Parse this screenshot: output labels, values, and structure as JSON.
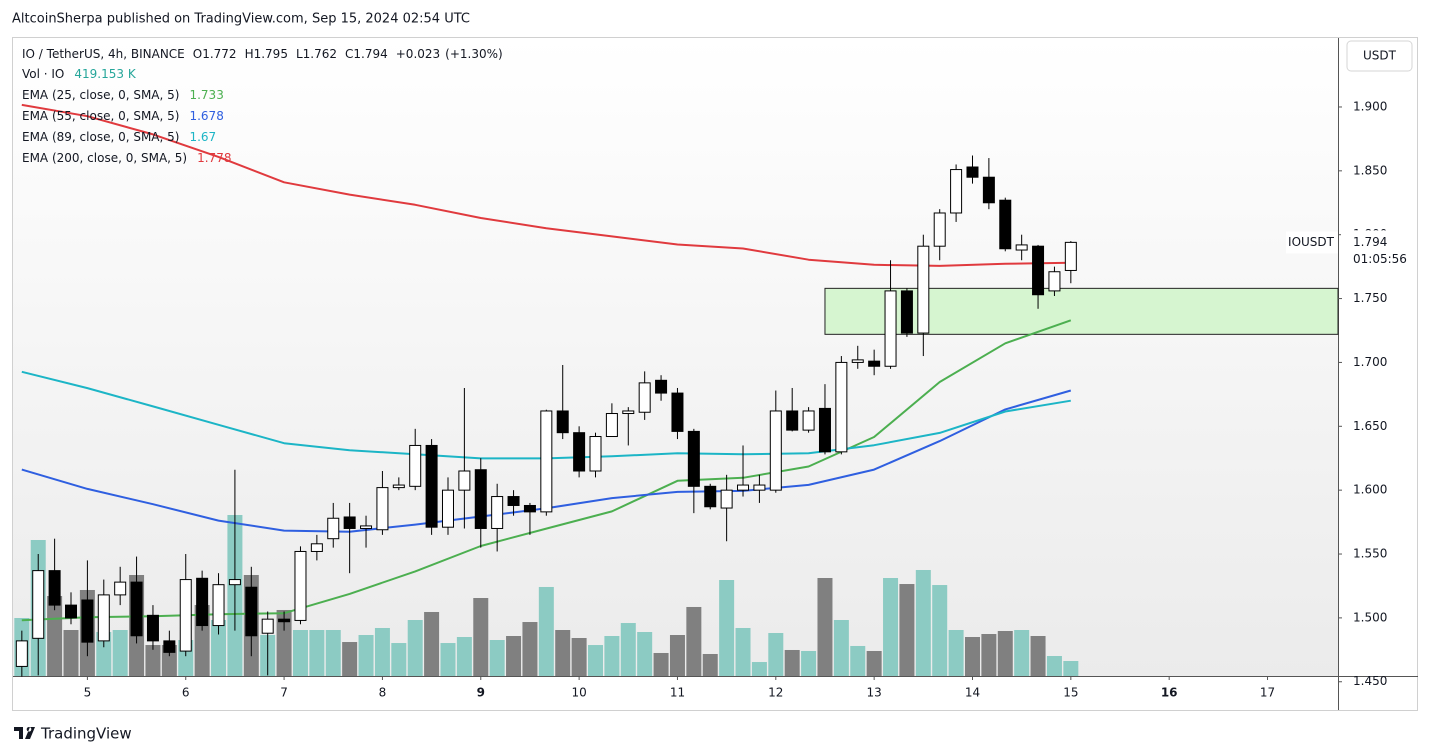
{
  "header": {
    "publisher": "AltcoinSherpa published on TradingView.com, Sep 15, 2024 02:54 UTC",
    "brand": "TradingView"
  },
  "chart_data": {
    "type": "candlestick",
    "symbol": "IO / TetherUS, 4h, BINANCE",
    "ohlc_labels": [
      "O",
      "H",
      "L",
      "C"
    ],
    "change": "+0.023",
    "change_percent": "(+1.30%)",
    "currency": "USDT",
    "ticker": "IOUSDT",
    "countdown": "01:05:56",
    "up_color": "#ffffff",
    "down_color": "#000000",
    "candles": {
      "open": [
        1.462,
        1.484,
        1.537,
        1.51,
        1.514,
        1.482,
        1.518,
        1.528,
        1.502,
        1.482,
        1.474,
        1.531,
        1.494,
        1.526,
        1.524,
        1.488,
        1.499,
        1.498,
        1.552,
        1.562,
        1.579,
        1.57,
        1.569,
        1.602,
        1.603,
        1.635,
        1.571,
        1.6,
        1.616,
        1.57,
        1.595,
        1.588,
        1.583,
        1.662,
        1.645,
        1.615,
        1.642,
        1.66,
        1.661,
        1.686,
        1.676,
        1.646,
        1.603,
        1.586,
        1.6,
        1.6,
        1.6,
        1.662,
        1.647,
        1.664,
        1.63,
        1.7,
        1.701,
        1.697,
        1.756,
        1.723,
        1.791,
        1.817,
        1.853,
        1.845,
        1.827,
        1.788,
        1.791,
        1.756,
        1.772
      ],
      "high": [
        1.49,
        1.55,
        1.562,
        1.52,
        1.545,
        1.53,
        1.54,
        1.548,
        1.51,
        1.49,
        1.55,
        1.537,
        1.535,
        1.616,
        1.54,
        1.505,
        1.505,
        1.556,
        1.565,
        1.59,
        1.59,
        1.58,
        1.615,
        1.61,
        1.648,
        1.64,
        1.61,
        1.68,
        1.625,
        1.605,
        1.6,
        1.59,
        1.663,
        1.698,
        1.65,
        1.645,
        1.668,
        1.665,
        1.693,
        1.69,
        1.68,
        1.648,
        1.605,
        1.612,
        1.635,
        1.612,
        1.678,
        1.68,
        1.665,
        1.683,
        1.705,
        1.713,
        1.71,
        1.78,
        1.758,
        1.8,
        1.82,
        1.855,
        1.862,
        1.86,
        1.829,
        1.8,
        1.792,
        1.775,
        1.795
      ],
      "low": [
        1.454,
        1.455,
        1.506,
        1.495,
        1.47,
        1.477,
        1.51,
        1.48,
        1.475,
        1.47,
        1.47,
        1.49,
        1.487,
        1.49,
        1.47,
        1.455,
        1.49,
        1.495,
        1.545,
        1.555,
        1.535,
        1.555,
        1.565,
        1.6,
        1.6,
        1.565,
        1.565,
        1.57,
        1.555,
        1.552,
        1.58,
        1.565,
        1.58,
        1.64,
        1.61,
        1.61,
        1.645,
        1.635,
        1.655,
        1.67,
        1.64,
        1.582,
        1.585,
        1.56,
        1.595,
        1.59,
        1.598,
        1.646,
        1.645,
        1.628,
        1.628,
        1.695,
        1.69,
        1.695,
        1.72,
        1.705,
        1.78,
        1.81,
        1.84,
        1.82,
        1.787,
        1.78,
        1.742,
        1.752,
        1.762
      ],
      "close": [
        1.482,
        1.537,
        1.51,
        1.5,
        1.481,
        1.518,
        1.528,
        1.486,
        1.482,
        1.473,
        1.53,
        1.494,
        1.526,
        1.53,
        1.486,
        1.499,
        1.497,
        1.552,
        1.558,
        1.578,
        1.57,
        1.572,
        1.602,
        1.604,
        1.635,
        1.571,
        1.6,
        1.615,
        1.57,
        1.595,
        1.588,
        1.583,
        1.662,
        1.645,
        1.615,
        1.642,
        1.66,
        1.662,
        1.684,
        1.676,
        1.646,
        1.603,
        1.587,
        1.6,
        1.604,
        1.604,
        1.662,
        1.647,
        1.662,
        1.63,
        1.7,
        1.702,
        1.697,
        1.756,
        1.723,
        1.791,
        1.817,
        1.851,
        1.845,
        1.825,
        1.789,
        1.792,
        1.753,
        1.771,
        1.794
      ]
    },
    "volume": {
      "name": "Vol · IO",
      "last_label": "419.153 K",
      "label_color": "#26a69a",
      "up_color": "#8ccbc3",
      "down_color": "#808080",
      "vlim": [
        0,
        4500
      ],
      "values": [
        1621,
        3801,
        2236,
        1286,
        2404,
        1230,
        1286,
        2823,
        866,
        866,
        1006,
        1984,
        1565,
        4500,
        2823,
        1146,
        1845,
        1286,
        1286,
        1286,
        950,
        1146,
        1342,
        922,
        1565,
        1789,
        922,
        1090,
        2180,
        1006,
        1118,
        1509,
        2488,
        1286,
        1062,
        866,
        1118,
        1481,
        1230,
        643,
        1146,
        1929,
        615,
        2683,
        1342,
        391,
        1202,
        727,
        699,
        2739,
        1565,
        839,
        699,
        2739,
        2571,
        2963,
        2543,
        1286,
        1090,
        1174,
        1258,
        1286,
        1118,
        559,
        419.153
      ]
    },
    "series": [
      {
        "name": "EMA (25, close, 0, SMA, 5)",
        "color": "#4caf50",
        "x": [
          0,
          4,
          8,
          12,
          16,
          20,
          24,
          28,
          32,
          36,
          40,
          44,
          48,
          52,
          56,
          60,
          64
        ],
        "values": [
          1.4981,
          1.5005,
          1.5013,
          1.5029,
          1.5037,
          1.5188,
          1.5364,
          1.5563,
          1.5699,
          1.5834,
          1.6073,
          1.6097,
          1.6185,
          1.6416,
          1.6847,
          1.715,
          1.733
        ]
      },
      {
        "name": "EMA (55, close, 0, SMA, 5)",
        "color": "#2f5fe0",
        "x": [
          0,
          4,
          8,
          12,
          16,
          20,
          24,
          28,
          32,
          36,
          40,
          44,
          48,
          52,
          56,
          60,
          64
        ],
        "values": [
          1.6161,
          1.601,
          1.589,
          1.5762,
          1.5683,
          1.5675,
          1.573,
          1.5794,
          1.5858,
          1.5938,
          1.5986,
          1.5994,
          1.6041,
          1.6161,
          1.6384,
          1.6632,
          1.678
        ]
      },
      {
        "name": "EMA (89, close, 0, SMA, 5)",
        "color": "#1cb5c6",
        "x": [
          0,
          4,
          8,
          12,
          16,
          20,
          24,
          28,
          32,
          36,
          40,
          44,
          48,
          52,
          56,
          60,
          64
        ],
        "values": [
          1.6927,
          1.6799,
          1.6656,
          1.6512,
          1.6368,
          1.6313,
          1.6281,
          1.6249,
          1.6249,
          1.6265,
          1.6289,
          1.6281,
          1.6289,
          1.6352,
          1.6448,
          1.6616,
          1.67
        ]
      },
      {
        "name": "EMA (200, close, 0, SMA, 5)",
        "color": "#e03a3e",
        "x": [
          0,
          4,
          8,
          12,
          16,
          20,
          24,
          28,
          32,
          36,
          40,
          44,
          48,
          52,
          56,
          60,
          64
        ],
        "values": [
          1.9016,
          1.8928,
          1.8785,
          1.8609,
          1.841,
          1.8314,
          1.8234,
          1.8131,
          1.8051,
          1.7987,
          1.7923,
          1.7892,
          1.7804,
          1.7764,
          1.7756,
          1.7772,
          1.778
        ]
      }
    ],
    "zone": {
      "start": 49,
      "top": 1.758,
      "bottom": 1.722,
      "color": "#d6f5d0"
    },
    "xlim": [
      -0.6,
      80.3
    ],
    "xticks": [
      {
        "value": 4,
        "label": "5"
      },
      {
        "value": 10,
        "label": "6"
      },
      {
        "value": 16,
        "label": "7"
      },
      {
        "value": 22,
        "label": "8"
      },
      {
        "value": 28,
        "label": "9",
        "bold": true
      },
      {
        "value": 34,
        "label": "10"
      },
      {
        "value": 40,
        "label": "11"
      },
      {
        "value": 46,
        "label": "12"
      },
      {
        "value": 52,
        "label": "13"
      },
      {
        "value": 58,
        "label": "14"
      },
      {
        "value": 64,
        "label": "15"
      },
      {
        "value": 70,
        "label": "16",
        "bold": true
      },
      {
        "value": 76,
        "label": "17"
      }
    ],
    "ylim": [
      1.4545,
      1.954
    ],
    "yticks": [
      {
        "value": 1.45,
        "label": "1.450"
      },
      {
        "value": 1.5,
        "label": "1.500"
      },
      {
        "value": 1.55,
        "label": "1.550"
      },
      {
        "value": 1.6,
        "label": "1.600"
      },
      {
        "value": 1.65,
        "label": "1.650"
      },
      {
        "value": 1.7,
        "label": "1.700"
      },
      {
        "value": 1.75,
        "label": "1.750"
      },
      {
        "value": 1.8,
        "label": "1.800"
      },
      {
        "value": 1.85,
        "label": "1.850"
      },
      {
        "value": 1.9,
        "label": "1.900"
      }
    ]
  }
}
